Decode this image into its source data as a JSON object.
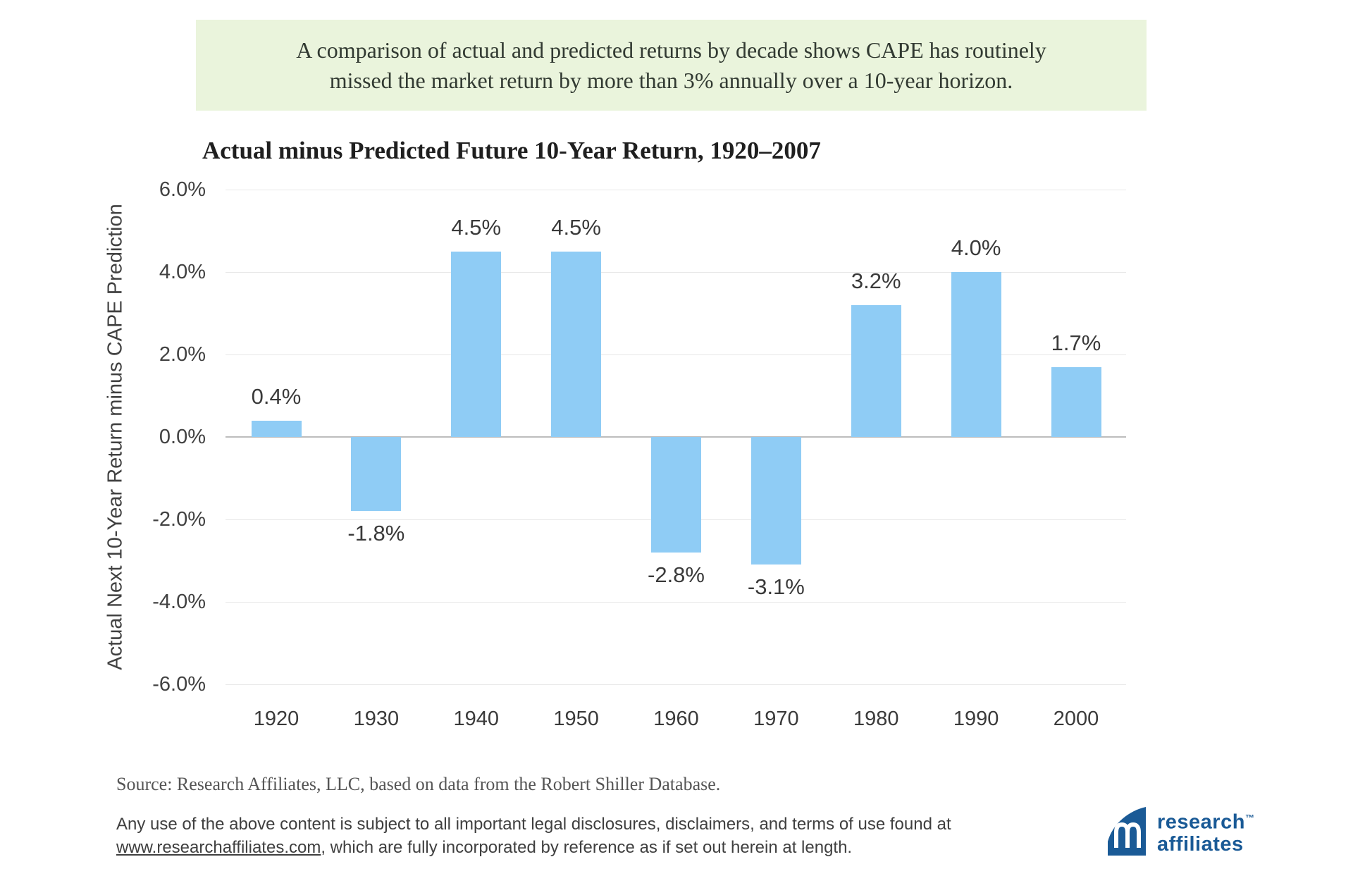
{
  "banner": {
    "line1": "A comparison of actual and predicted returns by decade shows CAPE has routinely",
    "line2": "missed the market return by more than 3% annually over a 10-year horizon.",
    "bg_color": "#eaf4dc"
  },
  "chart_data": {
    "type": "bar",
    "title": "Actual minus Predicted Future 10-Year Return, 1920–2007",
    "categories": [
      "1920",
      "1930",
      "1940",
      "1950",
      "1960",
      "1970",
      "1980",
      "1990",
      "2000"
    ],
    "values": [
      0.4,
      -1.8,
      4.5,
      4.5,
      -2.8,
      -3.1,
      3.2,
      4.0,
      1.7
    ],
    "value_labels": [
      "0.4%",
      "-1.8%",
      "4.5%",
      "4.5%",
      "-2.8%",
      "-3.1%",
      "3.2%",
      "4.0%",
      "1.7%"
    ],
    "ylabel": "Actual Next 10-Year Return minus CAPE Prediction",
    "xlabel": "",
    "ylim": [
      -6,
      6
    ],
    "yticks": [
      "6.0%",
      "4.0%",
      "2.0%",
      "0.0%",
      "-2.0%",
      "-4.0%",
      "-6.0%"
    ],
    "ytick_values": [
      6,
      4,
      2,
      0,
      -2,
      -4,
      -6
    ],
    "grid": true,
    "legend": "none",
    "bar_color": "#8fccf5"
  },
  "footer": {
    "source": "Source: Research Affiliates, LLC, based on data from the Robert Shiller Database.",
    "legal_line1": "Any use of the above content is subject to all important legal disclosures, disclaimers, and terms of use found at",
    "legal_link": "www.researchaffiliates.com",
    "legal_line2_rest": ", which are fully incorporated by reference as if set out herein at length."
  },
  "logo": {
    "line1": "research",
    "tm": "™",
    "line2": "affiliates",
    "color": "#1a5a96"
  }
}
